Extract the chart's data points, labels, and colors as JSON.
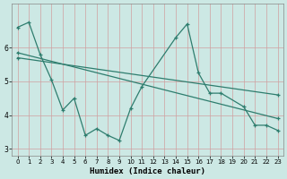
{
  "xlabel": "Humidex (Indice chaleur)",
  "bg_color": "#cce8e4",
  "grid_color": "#b0d8d2",
  "line_color": "#2e7d6e",
  "series0": {
    "x": [
      0,
      1,
      2,
      3,
      4,
      5,
      6,
      7,
      8,
      9,
      10,
      11,
      14,
      15,
      16,
      17,
      18,
      20,
      21,
      22,
      23
    ],
    "y": [
      6.6,
      6.75,
      5.8,
      5.05,
      4.15,
      4.5,
      3.4,
      3.6,
      3.4,
      3.25,
      4.2,
      4.85,
      6.3,
      6.7,
      5.25,
      4.65,
      4.65,
      4.25,
      3.7,
      3.7,
      3.55
    ]
  },
  "series1": {
    "x": [
      0,
      23
    ],
    "y": [
      5.85,
      3.9
    ]
  },
  "series2": {
    "x": [
      0,
      23
    ],
    "y": [
      5.7,
      4.6
    ]
  },
  "ylim": [
    2.8,
    7.3
  ],
  "xlim": [
    -0.5,
    23.5
  ],
  "yticks": [
    3,
    4,
    5,
    6
  ],
  "xticks": [
    0,
    1,
    2,
    3,
    4,
    5,
    6,
    7,
    8,
    9,
    10,
    11,
    12,
    13,
    14,
    15,
    16,
    17,
    18,
    19,
    20,
    21,
    22,
    23
  ]
}
